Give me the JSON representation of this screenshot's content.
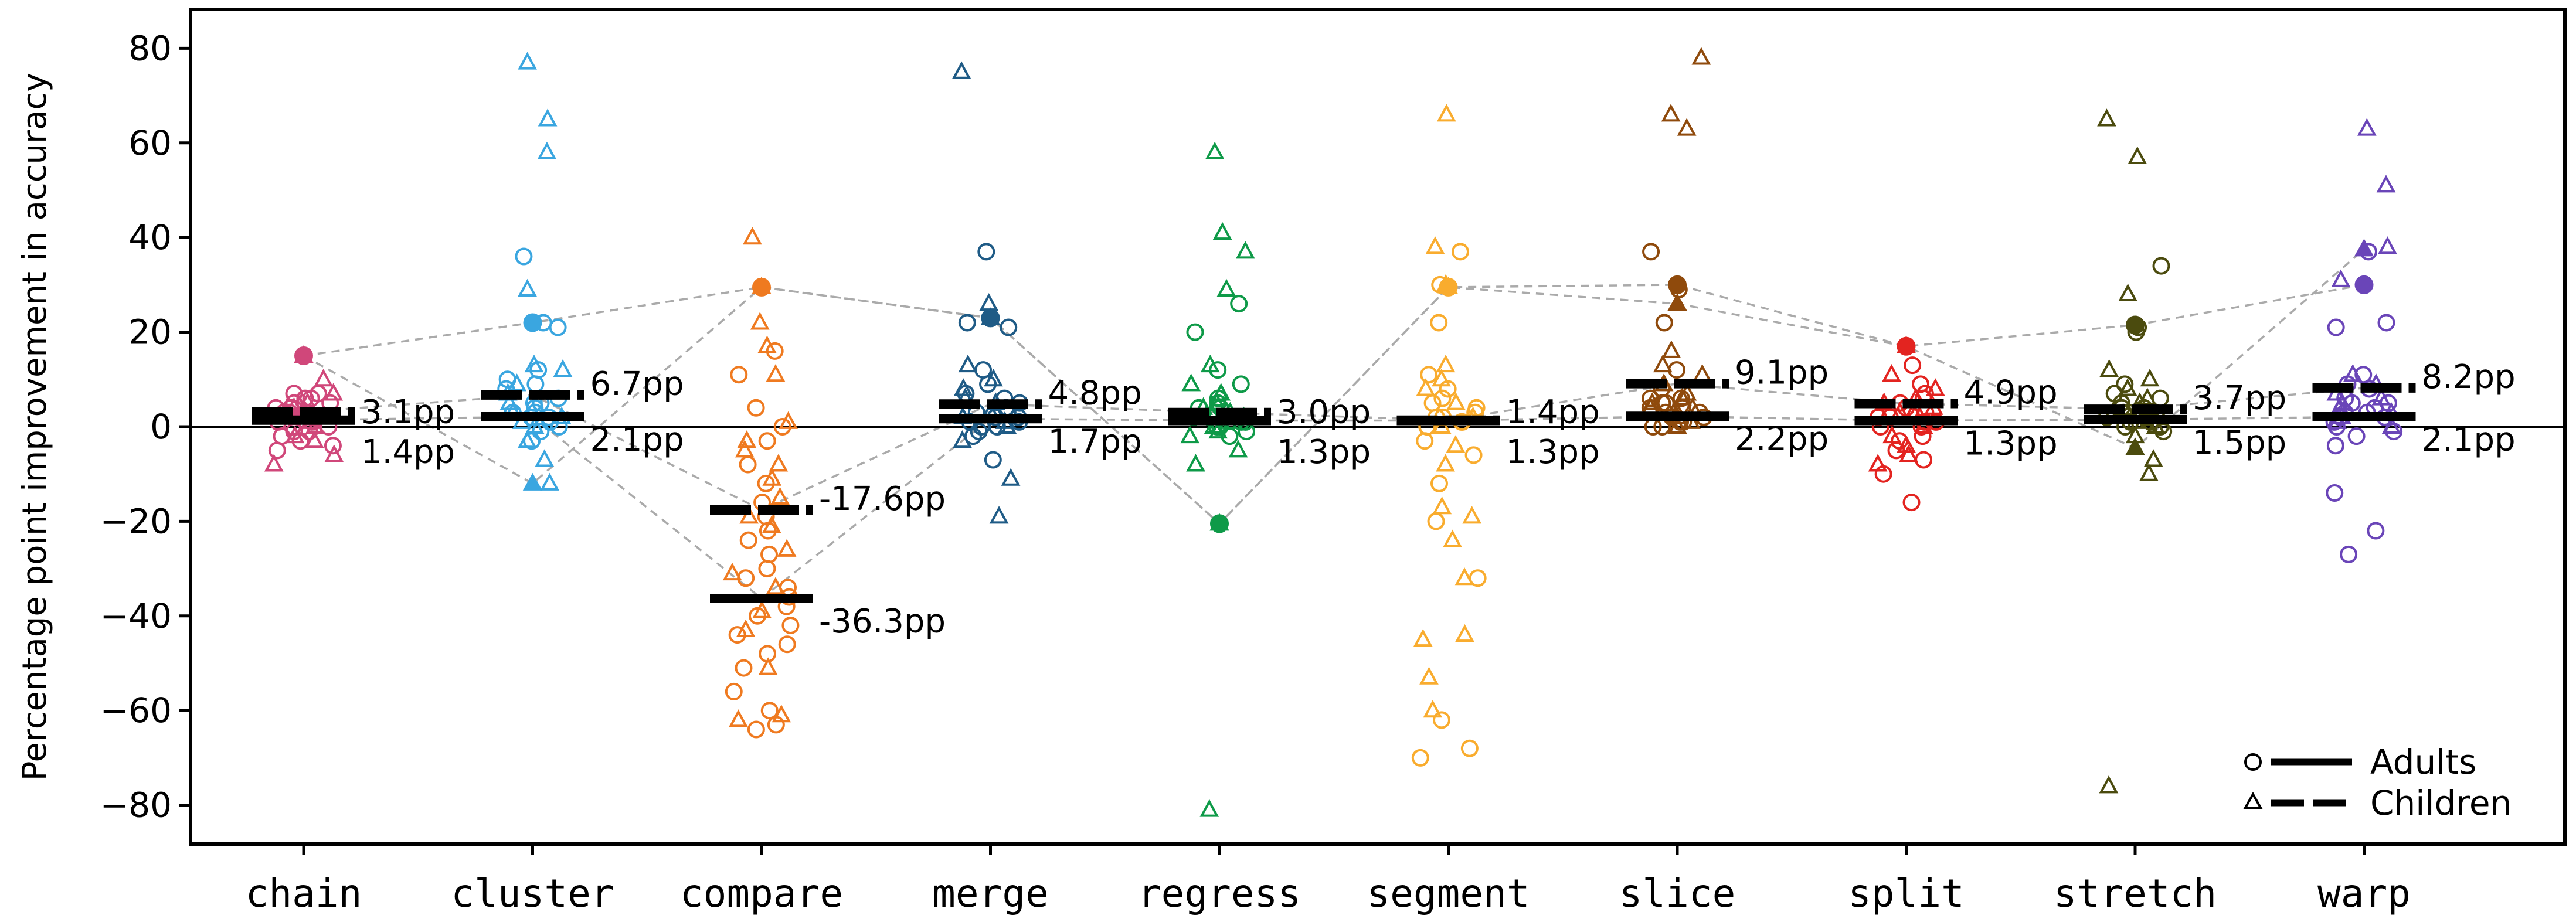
{
  "chart_data": {
    "type": "scatter",
    "ylabel": "Percentage point improvement in accuracy",
    "ylim": [
      -88,
      88
    ],
    "yticks": [
      80,
      60,
      40,
      20,
      0,
      -20,
      -40,
      -60,
      -80
    ],
    "ytick_labels": [
      "80",
      "60",
      "40",
      "20",
      "0",
      "−20",
      "−40",
      "−60",
      "−80"
    ],
    "categories": [
      "chain",
      "cluster",
      "compare",
      "merge",
      "regress",
      "segment",
      "slice",
      "split",
      "stretch",
      "warp"
    ],
    "colors": [
      "#d0477a",
      "#3aa6e0",
      "#ef7a20",
      "#1f5b86",
      "#0e9a48",
      "#f9ac2e",
      "#8f4a0c",
      "#e32420",
      "#4b4b0e",
      "#6a45b8"
    ],
    "adults_mean": [
      1.4,
      2.1,
      -36.3,
      1.7,
      1.3,
      1.3,
      2.2,
      1.3,
      1.5,
      2.1
    ],
    "children_mean": [
      3.1,
      6.7,
      -17.6,
      4.8,
      3.0,
      1.4,
      9.1,
      4.9,
      3.7,
      8.2
    ],
    "annotations": [
      {
        "upper": "3.1pp",
        "lower": "1.4pp"
      },
      {
        "upper": "6.7pp",
        "lower": "2.1pp"
      },
      {
        "upper": "-17.6pp",
        "lower": "-36.3pp"
      },
      {
        "upper": "4.8pp",
        "lower": "1.7pp"
      },
      {
        "upper": "3.0pp",
        "lower": "1.3pp"
      },
      {
        "upper": "1.4pp",
        "lower": "1.3pp"
      },
      {
        "upper": "9.1pp",
        "lower": "2.2pp"
      },
      {
        "upper": "4.9pp",
        "lower": "1.3pp"
      },
      {
        "upper": "3.7pp",
        "lower": "1.5pp"
      },
      {
        "upper": "8.2pp",
        "lower": "2.1pp"
      }
    ],
    "highlight_adults": [
      15,
      22,
      29.5,
      23,
      -20.5,
      29.5,
      30,
      17,
      21.5,
      30
    ],
    "highlight_children": [
      15,
      -12,
      29.5,
      23,
      -20.5,
      29.5,
      26,
      17,
      -4.5,
      37.5
    ],
    "adults_points": [
      [
        7,
        6,
        5,
        4,
        3,
        2,
        1,
        0,
        -1,
        -2,
        -3,
        -4,
        6,
        5,
        3,
        2,
        1,
        0,
        -1,
        4,
        -5,
        7
      ],
      [
        36,
        22,
        21,
        12,
        10,
        9,
        8,
        6,
        5,
        4,
        3,
        2,
        1,
        0,
        -1,
        5,
        3,
        2,
        -3
      ],
      [
        16,
        11,
        4,
        0,
        -3,
        -8,
        -12,
        -16,
        -19,
        -22,
        -24,
        -27,
        -30,
        -32,
        -34,
        -36,
        -38,
        -40,
        -42,
        -44,
        -46,
        -48,
        -51,
        -56,
        -60,
        -63,
        -64
      ],
      [
        37,
        22,
        21,
        12,
        9,
        7,
        5,
        4,
        3,
        2,
        1,
        0,
        -1,
        -2,
        6,
        3,
        2,
        1,
        0,
        -7
      ],
      [
        26,
        20,
        12,
        9,
        6,
        5,
        4,
        3,
        2,
        1,
        0,
        -1,
        -2,
        4,
        2,
        1,
        0
      ],
      [
        37,
        22,
        11,
        8,
        6,
        5,
        3,
        2,
        1,
        0,
        -3,
        -6,
        -12,
        -20,
        -32,
        -62,
        -68,
        -70,
        30,
        4,
        2,
        1,
        0
      ],
      [
        37,
        29,
        22,
        12,
        8,
        6,
        5,
        4,
        3,
        2,
        1,
        0,
        5,
        3,
        2,
        1,
        0,
        6,
        4
      ],
      [
        13,
        9,
        6,
        4,
        3,
        2,
        1,
        0,
        -2,
        -3,
        -5,
        -7,
        -10,
        -16,
        7,
        5,
        2,
        1,
        0
      ],
      [
        34,
        21,
        20,
        9,
        7,
        5,
        4,
        3,
        2,
        1,
        0,
        -1,
        6,
        4,
        3,
        2,
        1,
        0
      ],
      [
        37,
        22,
        21,
        11,
        9,
        8,
        6,
        5,
        4,
        3,
        2,
        1,
        0,
        -1,
        -2,
        -4,
        -14,
        -22,
        -27,
        5,
        3,
        2
      ]
    ],
    "children_points": [
      [
        10,
        7,
        5,
        3,
        2,
        1,
        0,
        -2,
        -3,
        -6,
        -8,
        4,
        2
      ],
      [
        77,
        65,
        58,
        29,
        13,
        12,
        9,
        7,
        5,
        3,
        2,
        1,
        0,
        -3,
        -7,
        -12
      ],
      [
        40,
        22,
        17,
        11,
        1,
        -3,
        -5,
        -8,
        -11,
        -15,
        -19,
        -21,
        -26,
        -31,
        -34,
        -39,
        -43,
        -51,
        -61,
        -62
      ],
      [
        75,
        26,
        13,
        10,
        8,
        6,
        5,
        3,
        2,
        1,
        0,
        -3,
        -11,
        -19
      ],
      [
        58,
        41,
        37,
        29,
        13,
        9,
        7,
        5,
        4,
        3,
        2,
        1,
        0,
        -1,
        -2,
        -5,
        -8,
        -81
      ],
      [
        66,
        38,
        30,
        13,
        10,
        8,
        5,
        2,
        0,
        -4,
        -8,
        -17,
        -19,
        -24,
        -32,
        -44,
        -45,
        -53,
        -60
      ],
      [
        78,
        66,
        63,
        16,
        13,
        11,
        9,
        7,
        5,
        4,
        3,
        2,
        1,
        0,
        6,
        4
      ],
      [
        11,
        8,
        6,
        4,
        3,
        2,
        0,
        -2,
        -4,
        -6,
        -8,
        5,
        3
      ],
      [
        65,
        57,
        28,
        12,
        10,
        8,
        6,
        5,
        3,
        2,
        1,
        0,
        -2,
        -7,
        -10,
        -76
      ],
      [
        63,
        51,
        38,
        31,
        11,
        9,
        7,
        5,
        3,
        2,
        1,
        0,
        6,
        4
      ]
    ],
    "legend": [
      {
        "label": "Adults",
        "marker": "circle",
        "line": "solid"
      },
      {
        "label": "Children",
        "marker": "triangle",
        "line": "dashed"
      }
    ],
    "legend_position": "bottom-right",
    "zero_line": true
  }
}
